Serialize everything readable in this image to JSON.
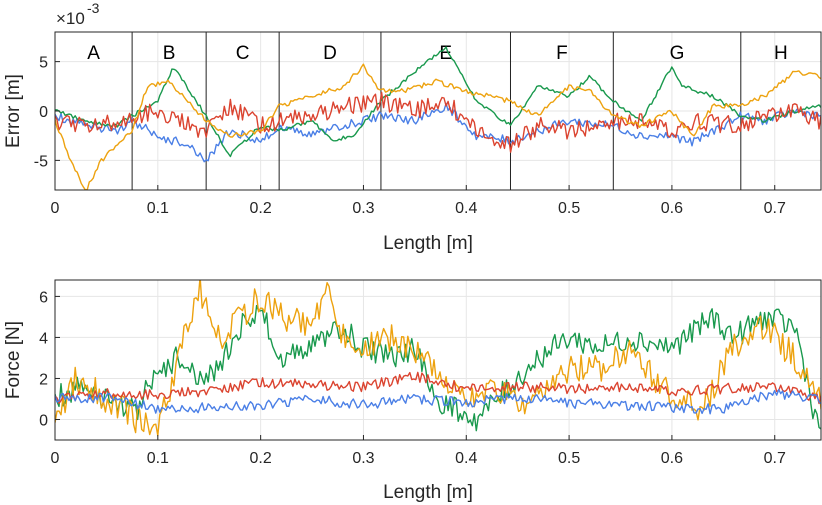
{
  "chart_data": [
    {
      "type": "line",
      "name": "error-plot",
      "xlabel": "Length [m]",
      "ylabel": "Error [m]",
      "exponent_label": "×10",
      "exponent_power": "-3",
      "xlim": [
        0,
        0.745
      ],
      "ylim": [
        -8,
        8
      ],
      "xticks": [
        0,
        0.1,
        0.2,
        0.3,
        0.4,
        0.5,
        0.6,
        0.7
      ],
      "xtick_labels": [
        "0",
        "0.1",
        "0.2",
        "0.3",
        "0.4",
        "0.5",
        "0.6",
        "0.7"
      ],
      "yticks": [
        -5,
        0,
        5
      ],
      "ytick_labels": [
        "-5",
        "0",
        "5"
      ],
      "segment_boundaries": [
        0.075,
        0.147,
        0.218,
        0.317,
        0.443,
        0.543,
        0.667
      ],
      "segment_labels": [
        "A",
        "B",
        "C",
        "D",
        "E",
        "F",
        "G",
        "H"
      ],
      "grid": true,
      "series": [
        {
          "name": "blue",
          "color": "#4a7fe6",
          "x": [
            0,
            0.03,
            0.06,
            0.075,
            0.1,
            0.13,
            0.147,
            0.17,
            0.2,
            0.218,
            0.25,
            0.28,
            0.317,
            0.35,
            0.38,
            0.41,
            0.443,
            0.47,
            0.5,
            0.543,
            0.57,
            0.6,
            0.62,
            0.667,
            0.69,
            0.72,
            0.745
          ],
          "y": [
            -0.5,
            -1.5,
            -2,
            -1,
            -2.5,
            -3.5,
            -5,
            -2,
            -3,
            -1.5,
            -2.5,
            -1.5,
            -0.5,
            -1,
            0.5,
            -2.5,
            -3,
            -2,
            -1,
            -1.5,
            -2.5,
            -2.5,
            -3.2,
            -0.5,
            -1,
            0,
            -0.5
          ]
        },
        {
          "name": "green",
          "color": "#19994d",
          "x": [
            0,
            0.03,
            0.06,
            0.075,
            0.1,
            0.115,
            0.147,
            0.17,
            0.2,
            0.218,
            0.25,
            0.27,
            0.29,
            0.317,
            0.35,
            0.38,
            0.41,
            0.443,
            0.47,
            0.5,
            0.52,
            0.543,
            0.57,
            0.6,
            0.61,
            0.64,
            0.667,
            0.69,
            0.72,
            0.745
          ],
          "y": [
            0,
            -1,
            -1.5,
            -0.5,
            1,
            4.5,
            -0.5,
            -4.5,
            -1.5,
            -2,
            -1,
            -3,
            -2.5,
            1,
            4,
            6.5,
            1,
            -1.5,
            2.5,
            1.5,
            3.5,
            1,
            -1,
            4.5,
            2.5,
            1.5,
            -0.5,
            -1,
            0,
            0.5
          ]
        },
        {
          "name": "red",
          "color": "#db4430",
          "x": [
            0,
            0.03,
            0.06,
            0.075,
            0.1,
            0.13,
            0.147,
            0.17,
            0.2,
            0.218,
            0.25,
            0.28,
            0.317,
            0.35,
            0.38,
            0.41,
            0.443,
            0.47,
            0.5,
            0.543,
            0.57,
            0.6,
            0.62,
            0.667,
            0.69,
            0.72,
            0.745
          ],
          "y": [
            -1,
            -1.5,
            -1,
            -0.5,
            0,
            -1.5,
            -2,
            0.5,
            -1.5,
            -1,
            -0.5,
            0.5,
            1,
            0,
            1,
            -2,
            -3.5,
            -1.5,
            -2,
            -1,
            -1,
            -2,
            -1,
            -1.5,
            -0.5,
            0,
            -1
          ]
        },
        {
          "name": "orange",
          "color": "#eda20f",
          "x": [
            0,
            0.015,
            0.03,
            0.045,
            0.06,
            0.075,
            0.09,
            0.11,
            0.13,
            0.147,
            0.17,
            0.2,
            0.218,
            0.25,
            0.28,
            0.3,
            0.317,
            0.34,
            0.37,
            0.4,
            0.443,
            0.47,
            0.5,
            0.52,
            0.543,
            0.57,
            0.6,
            0.62,
            0.64,
            0.667,
            0.69,
            0.72,
            0.745
          ],
          "y": [
            -1,
            -5,
            -8,
            -5,
            -3.5,
            -2,
            2.5,
            3,
            1,
            -1,
            -2.5,
            -2,
            0.5,
            1.5,
            2.5,
            4.5,
            2,
            2,
            3,
            2,
            1,
            -0.5,
            2.5,
            2,
            -0.5,
            -1.5,
            0,
            -2.5,
            0.5,
            0.5,
            1.5,
            4,
            3.5
          ]
        }
      ]
    },
    {
      "type": "line",
      "name": "force-plot",
      "xlabel": "Length [m]",
      "ylabel": "Force [N]",
      "xlim": [
        0,
        0.745
      ],
      "ylim": [
        -1,
        6.8
      ],
      "xticks": [
        0,
        0.1,
        0.2,
        0.3,
        0.4,
        0.5,
        0.6,
        0.7
      ],
      "xtick_labels": [
        "0",
        "0.1",
        "0.2",
        "0.3",
        "0.4",
        "0.5",
        "0.6",
        "0.7"
      ],
      "yticks": [
        0,
        2,
        4,
        6
      ],
      "ytick_labels": [
        "0",
        "2",
        "4",
        "6"
      ],
      "grid": true,
      "series": [
        {
          "name": "green",
          "color": "#19994d",
          "x": [
            0,
            0.02,
            0.05,
            0.08,
            0.1,
            0.12,
            0.14,
            0.16,
            0.18,
            0.2,
            0.22,
            0.25,
            0.28,
            0.3,
            0.33,
            0.35,
            0.37,
            0.39,
            0.41,
            0.43,
            0.45,
            0.47,
            0.5,
            0.53,
            0.56,
            0.6,
            0.64,
            0.66,
            0.69,
            0.72,
            0.74,
            0.745
          ],
          "y": [
            1,
            1.5,
            1,
            0.5,
            2.5,
            3,
            2,
            2.5,
            4.5,
            5.5,
            3,
            3.5,
            4.5,
            3.5,
            3,
            3.5,
            1,
            0.5,
            0,
            1,
            2,
            3,
            4,
            3.5,
            4,
            3.5,
            5,
            4,
            5,
            4.5,
            0,
            -0.5
          ]
        },
        {
          "name": "orange",
          "color": "#eda20f",
          "x": [
            0,
            0.02,
            0.05,
            0.08,
            0.1,
            0.12,
            0.14,
            0.16,
            0.18,
            0.2,
            0.22,
            0.25,
            0.265,
            0.28,
            0.3,
            0.33,
            0.36,
            0.4,
            0.43,
            0.46,
            0.5,
            0.53,
            0.56,
            0.6,
            0.63,
            0.66,
            0.69,
            0.72,
            0.74,
            0.745
          ],
          "y": [
            -0.5,
            2,
            1,
            0,
            -0.5,
            3,
            6.5,
            4,
            5,
            6,
            5,
            4.5,
            6.5,
            4,
            3.5,
            4,
            3,
            1,
            1.5,
            0.5,
            2.5,
            2.5,
            3.5,
            1,
            0.5,
            3.5,
            4.5,
            3,
            1,
            1
          ]
        },
        {
          "name": "red",
          "color": "#db4430",
          "x": [
            0,
            0.05,
            0.1,
            0.15,
            0.2,
            0.25,
            0.3,
            0.35,
            0.4,
            0.45,
            0.5,
            0.55,
            0.6,
            0.65,
            0.7,
            0.745
          ],
          "y": [
            1,
            1.3,
            1.2,
            1.4,
            1.8,
            1.7,
            1.6,
            2.1,
            1.5,
            1.6,
            1.5,
            1.6,
            1.4,
            1.5,
            1.6,
            1
          ]
        },
        {
          "name": "blue",
          "color": "#4a7fe6",
          "x": [
            0,
            0.05,
            0.1,
            0.15,
            0.2,
            0.25,
            0.3,
            0.35,
            0.4,
            0.45,
            0.5,
            0.55,
            0.6,
            0.65,
            0.7,
            0.745
          ],
          "y": [
            1,
            1.1,
            0.5,
            0.6,
            0.7,
            1,
            0.7,
            1,
            0.8,
            1.1,
            0.8,
            0.7,
            0.6,
            0.5,
            1.3,
            1
          ]
        }
      ]
    }
  ]
}
